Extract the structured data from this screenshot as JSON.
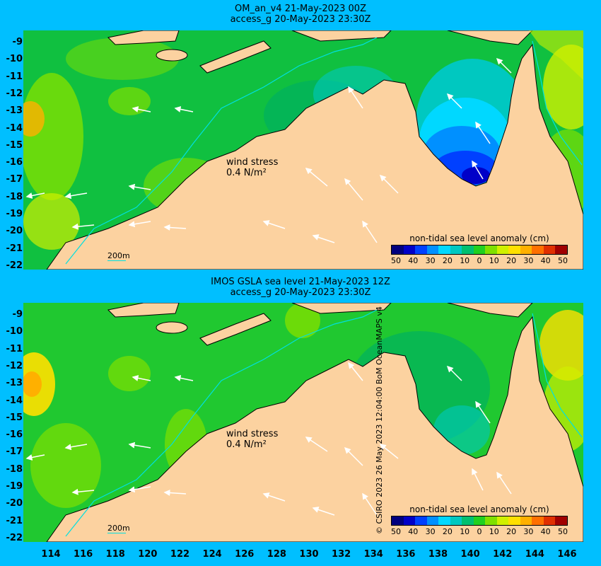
{
  "top_panel": {
    "title_line1": "OM_an_v4  21-May-2023 00Z",
    "title_line2": "access_g 20-May-2023 23:30Z",
    "wind_label": "wind stress",
    "wind_value": "0.4 N/m²",
    "isobath_label": "200m",
    "colorbar_title": "non-tidal sea level anomaly (cm)"
  },
  "bottom_panel": {
    "title_line1": "IMOS GSLA sea level  21-May-2023 12Z",
    "title_line2": "access_g 20-May-2023 23:30Z",
    "wind_label": "wind stress",
    "wind_value": "0.4 N/m²",
    "isobath_label": "200m",
    "colorbar_title": "non-tidal sea level anomaly (cm)"
  },
  "colorbar_ticks": [
    "50",
    "40",
    "30",
    "20",
    "10",
    "0",
    "10",
    "20",
    "30",
    "40",
    "50"
  ],
  "colorbar_colors": [
    "#00007f",
    "#0000c8",
    "#0040ff",
    "#0090ff",
    "#00d8ff",
    "#00c8c0",
    "#00c070",
    "#20d020",
    "#7fe000",
    "#d0f000",
    "#ffe000",
    "#ffb000",
    "#ff7000",
    "#e03000",
    "#a00000"
  ],
  "latitude_labels": [
    "-9",
    "-10",
    "-11",
    "-12",
    "-13",
    "-14",
    "-15",
    "-16",
    "-17",
    "-18",
    "-19",
    "-20",
    "-21",
    "-22"
  ],
  "longitude_labels": [
    "114",
    "116",
    "118",
    "120",
    "122",
    "124",
    "126",
    "128",
    "130",
    "132",
    "134",
    "136",
    "138",
    "140",
    "142",
    "144",
    "146"
  ],
  "credit": "© CSIRO 2023   26 May 2023 12:04:00 BoM OceanMAPS v4",
  "colors": {
    "background": "#00bfff",
    "land": "#fcd2a0",
    "ocean_base": "#10c040",
    "isobath": "#00e0e0"
  }
}
